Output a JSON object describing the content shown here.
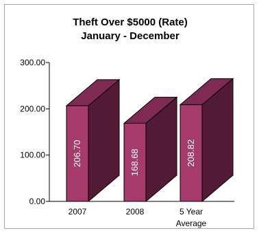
{
  "chart_data": {
    "type": "bar",
    "title": "Theft Over $5000 (Rate)",
    "subtitle": "January - December",
    "categories": [
      [
        "2007"
      ],
      [
        "2008"
      ],
      [
        "5 Year",
        "Average"
      ]
    ],
    "values": [
      206.7,
      168.68,
      208.82
    ],
    "value_labels": [
      "206.70",
      "168.68",
      "208.82"
    ],
    "ylim": [
      0,
      300
    ],
    "yticks": [
      {
        "value": 0,
        "label": "0.00"
      },
      {
        "value": 100,
        "label": "100.00"
      },
      {
        "value": 200,
        "label": "200.00"
      },
      {
        "value": 300,
        "label": "300.00"
      }
    ],
    "xlabel": "",
    "ylabel": "",
    "grid": false,
    "legend": "none",
    "bar_style": "3d",
    "colors": {
      "front": "#A53A6B",
      "top": "#7E2A52",
      "side": "#511A35",
      "outline": "#000000",
      "border": "#A6A6A6"
    }
  }
}
